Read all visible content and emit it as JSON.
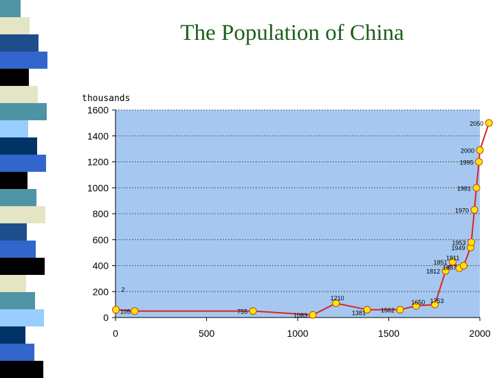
{
  "title": "The Population of China",
  "decoration": {
    "stripe_colors": [
      "#4f94a5",
      "#e3e5c4",
      "#1e4d8c",
      "#3366cc",
      "#000000",
      "#e3e5c4",
      "#4f94a5",
      "#99ccff",
      "#003366",
      "#3366cc",
      "#000000"
    ]
  },
  "chart_data": {
    "type": "line",
    "ylabel": "thousands",
    "xlim": [
      0,
      2000
    ],
    "ylim": [
      0,
      1600
    ],
    "xticks": [
      0,
      500,
      1000,
      1500,
      2000
    ],
    "yticks": [
      0,
      200,
      400,
      600,
      800,
      1000,
      1200,
      1400,
      1600
    ],
    "grid": "horizontal dotted",
    "plot_background": "#a6c8f0",
    "line_color": "#dd2222",
    "marker_color": "#ffe600",
    "series": [
      {
        "values": [
          {
            "x": 2,
            "y": 60,
            "label": "2"
          },
          {
            "x": 105,
            "y": 50,
            "label": "105"
          },
          {
            "x": 755,
            "y": 50,
            "label": "755"
          },
          {
            "x": 1083,
            "y": 20,
            "label": "1083"
          },
          {
            "x": 1210,
            "y": 110,
            "label": "1210"
          },
          {
            "x": 1381,
            "y": 60,
            "label": "1381"
          },
          {
            "x": 1562,
            "y": 60,
            "label": "1562"
          },
          {
            "x": 1650,
            "y": 90,
            "label": "1650"
          },
          {
            "x": 1753,
            "y": 100,
            "label": "1753"
          },
          {
            "x": 1812,
            "y": 360,
            "label": "1812"
          },
          {
            "x": 1851,
            "y": 430,
            "label": "1851"
          },
          {
            "x": 1887,
            "y": 380,
            "label": "1887"
          },
          {
            "x": 1911,
            "y": 400,
            "label": "1911"
          },
          {
            "x": 1949,
            "y": 540,
            "label": "1949"
          },
          {
            "x": 1953,
            "y": 580,
            "label": "1953"
          },
          {
            "x": 1970,
            "y": 830,
            "label": "1970"
          },
          {
            "x": 1981,
            "y": 1000,
            "label": "1981"
          },
          {
            "x": 1995,
            "y": 1200,
            "label": "1995"
          },
          {
            "x": 2000,
            "y": 1290,
            "label": "2000"
          },
          {
            "x": 2050,
            "y": 1500,
            "label": "2050"
          }
        ]
      }
    ]
  }
}
